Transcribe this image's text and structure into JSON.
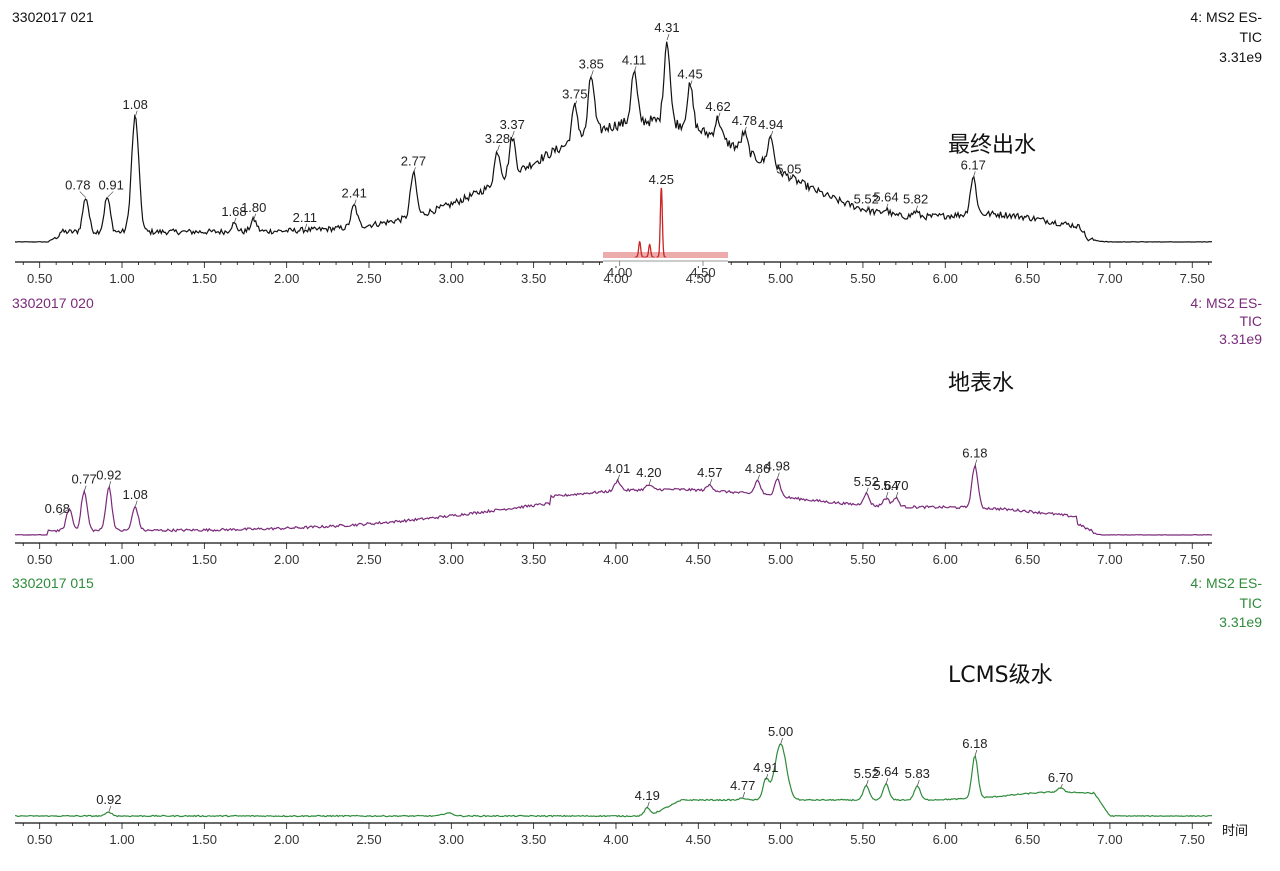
{
  "chart_data": [
    {
      "type": "line",
      "sample_id": "3302017 021",
      "function_label": [
        "4: MS2 ES-",
        "TIC",
        "3.31e9"
      ],
      "water_label": "最终出水",
      "color": "#111111",
      "xlim": [
        0.35,
        7.62
      ],
      "x_ticks": [
        "0.50",
        "1.00",
        "1.50",
        "2.00",
        "2.50",
        "3.00",
        "3.50",
        "4.00",
        "4.50",
        "5.00",
        "5.50",
        "6.00",
        "6.50",
        "7.00",
        "7.50"
      ],
      "baseline_level": 0.12,
      "peaks": [
        {
          "label": "0.78",
          "rt": 0.78,
          "h": 0.22
        },
        {
          "label": "0.91",
          "rt": 0.91,
          "h": 0.22
        },
        {
          "label": "1.08",
          "rt": 1.08,
          "h": 0.62
        },
        {
          "label": "1.68",
          "rt": 1.68,
          "h": 0.09
        },
        {
          "label": "1.80",
          "rt": 1.8,
          "h": 0.11
        },
        {
          "label": "2.11",
          "rt": 2.11,
          "h": 0.06
        },
        {
          "label": "2.41",
          "rt": 2.41,
          "h": 0.18
        },
        {
          "label": "2.77",
          "rt": 2.77,
          "h": 0.34
        },
        {
          "label": "3.28",
          "rt": 3.28,
          "h": 0.45
        },
        {
          "label": "3.37",
          "rt": 3.37,
          "h": 0.52
        },
        {
          "label": "3.75",
          "rt": 3.75,
          "h": 0.67
        },
        {
          "label": "3.85",
          "rt": 3.85,
          "h": 0.82
        },
        {
          "label": "4.11",
          "rt": 4.11,
          "h": 0.84
        },
        {
          "label": "4.31",
          "rt": 4.31,
          "h": 1.0
        },
        {
          "label": "4.45",
          "rt": 4.45,
          "h": 0.77
        },
        {
          "label": "4.62",
          "rt": 4.62,
          "h": 0.61
        },
        {
          "label": "4.78",
          "rt": 4.78,
          "h": 0.54
        },
        {
          "label": "4.94",
          "rt": 4.94,
          "h": 0.52
        },
        {
          "label": "5.05",
          "rt": 5.05,
          "h": 0.3
        },
        {
          "label": "5.52",
          "rt": 5.52,
          "h": 0.15
        },
        {
          "label": "5.64",
          "rt": 5.64,
          "h": 0.16
        },
        {
          "label": "5.82",
          "rt": 5.82,
          "h": 0.15
        },
        {
          "label": "6.17",
          "rt": 6.17,
          "h": 0.32
        }
      ],
      "inset": {
        "peak_label": "4.25",
        "x_ticks": [
          "4.00",
          "4.50"
        ],
        "xlim": [
          3.9,
          4.65
        ],
        "color": "#cc2222",
        "peaks": [
          {
            "rt": 4.12,
            "h": 0.22
          },
          {
            "rt": 4.18,
            "h": 0.18
          },
          {
            "rt": 4.25,
            "h": 1.0
          }
        ]
      }
    },
    {
      "type": "line",
      "sample_id": "3302017 020",
      "function_label": [
        "4: MS2 ES-",
        "TIC",
        "3.31e9"
      ],
      "water_label": "地表水",
      "color": "#7a2a7a",
      "xlim": [
        0.35,
        7.62
      ],
      "x_ticks": [
        "0.50",
        "1.00",
        "1.50",
        "2.00",
        "2.50",
        "3.00",
        "3.50",
        "4.00",
        "4.50",
        "5.00",
        "5.50",
        "6.00",
        "6.50",
        "7.00",
        "7.50"
      ],
      "baseline_level": 0.05,
      "peaks": [
        {
          "label": "0.68",
          "rt": 0.68,
          "h": 0.12
        },
        {
          "label": "0.77",
          "rt": 0.77,
          "h": 0.2
        },
        {
          "label": "0.92",
          "rt": 0.92,
          "h": 0.22
        },
        {
          "label": "1.08",
          "rt": 1.08,
          "h": 0.13
        },
        {
          "label": "4.01",
          "rt": 4.01,
          "h": 0.25
        },
        {
          "label": "4.20",
          "rt": 4.2,
          "h": 0.23
        },
        {
          "label": "4.57",
          "rt": 4.57,
          "h": 0.23
        },
        {
          "label": "4.86",
          "rt": 4.86,
          "h": 0.25
        },
        {
          "label": "4.98",
          "rt": 4.98,
          "h": 0.26
        },
        {
          "label": "5.52",
          "rt": 5.52,
          "h": 0.19
        },
        {
          "label": "5.64",
          "rt": 5.64,
          "h": 0.17
        },
        {
          "label": "5.70",
          "rt": 5.7,
          "h": 0.17
        },
        {
          "label": "6.18",
          "rt": 6.18,
          "h": 0.32
        }
      ]
    },
    {
      "type": "line",
      "sample_id": "3302017 015",
      "function_label": [
        "4: MS2 ES-",
        "TIC",
        "3.31e9"
      ],
      "water_label": "LCMS级水",
      "color": "#2e8b3a",
      "xlim": [
        0.35,
        7.62
      ],
      "x_ticks": [
        "0.50",
        "1.00",
        "1.50",
        "2.00",
        "2.50",
        "3.00",
        "3.50",
        "4.00",
        "4.50",
        "5.00",
        "5.50",
        "6.00",
        "6.50",
        "7.00",
        "7.50"
      ],
      "x_axis_label": "时间",
      "baseline_level": 0.02,
      "peaks": [
        {
          "label": "0.92",
          "rt": 0.92,
          "h": 0.03
        },
        {
          "label": "4.19",
          "rt": 4.19,
          "h": 0.05
        },
        {
          "label": "4.77",
          "rt": 4.77,
          "h": 0.1
        },
        {
          "label": "4.91",
          "rt": 4.91,
          "h": 0.19
        },
        {
          "label": "5.00",
          "rt": 5.0,
          "h": 0.37
        },
        {
          "label": "5.52",
          "rt": 5.52,
          "h": 0.16
        },
        {
          "label": "5.64",
          "rt": 5.64,
          "h": 0.17
        },
        {
          "label": "5.83",
          "rt": 5.83,
          "h": 0.16
        },
        {
          "label": "6.18",
          "rt": 6.18,
          "h": 0.31
        },
        {
          "label": "6.70",
          "rt": 6.7,
          "h": 0.15
        }
      ]
    }
  ]
}
